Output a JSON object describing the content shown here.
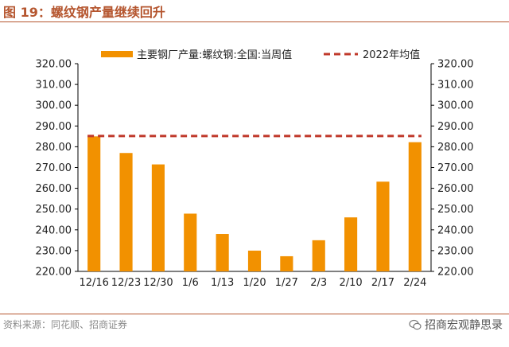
{
  "header": {
    "figure_title": "图 19：螺纹钢产量继续回升"
  },
  "footer": {
    "source": "资料来源：同花顺、招商证券",
    "brand": "招商宏观静思录",
    "brand_icon": "wechat-icon"
  },
  "colors": {
    "accent": "#b5562f",
    "bar": "#f29100",
    "avg_line": "#c0392b"
  },
  "chart_data": {
    "type": "bar",
    "categories": [
      "12/16",
      "12/23",
      "12/30",
      "1/6",
      "1/13",
      "1/20",
      "1/27",
      "2/3",
      "2/10",
      "2/17",
      "2/24"
    ],
    "series": [
      {
        "name": "主要钢厂产量:螺纹钢:全国:当周值",
        "type": "bar",
        "values": [
          285.0,
          277.0,
          271.5,
          247.8,
          238.0,
          230.0,
          227.3,
          235.0,
          246.0,
          263.2,
          282.2
        ]
      },
      {
        "name": "2022年均值",
        "type": "line",
        "style": "dashed",
        "value": 285.2
      }
    ],
    "yticks": [
      "220.00",
      "230.00",
      "240.00",
      "250.00",
      "260.00",
      "270.00",
      "280.00",
      "290.00",
      "300.00",
      "310.00",
      "320.00"
    ],
    "ylim": [
      220,
      320
    ],
    "secondary_y_axis": true,
    "legend_position": "top",
    "grid": false
  }
}
